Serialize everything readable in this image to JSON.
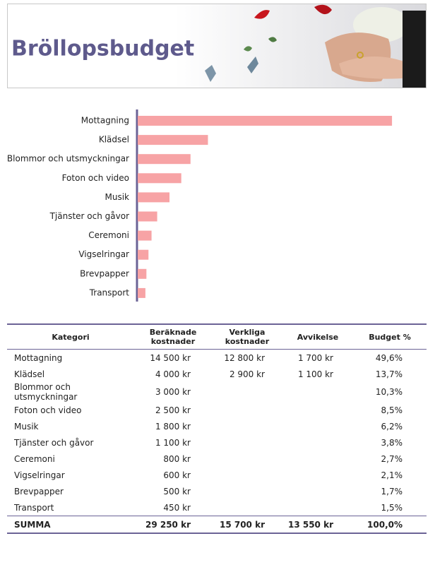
{
  "header": {
    "title": "Bröllopsbudget"
  },
  "chart_data": {
    "type": "bar",
    "orientation": "horizontal",
    "categories": [
      "Mottagning",
      "Klädsel",
      "Blommor och utsmyckningar",
      "Foton och video",
      "Musik",
      "Tjänster och gåvor",
      "Ceremoni",
      "Vigselringar",
      "Brevpapper",
      "Transport"
    ],
    "values": [
      49.6,
      13.7,
      10.3,
      8.5,
      6.2,
      3.8,
      2.7,
      2.1,
      1.7,
      1.5
    ],
    "color": "#f7a3a5",
    "xlim": [
      0,
      50
    ]
  },
  "table": {
    "columns": [
      "Kategori",
      "Beräknade kostnader",
      "Verkliga kostnader",
      "Avvikelse",
      "Budget %"
    ],
    "rows": [
      [
        "Mottagning",
        "14 500 kr",
        "12 800 kr",
        "1 700 kr",
        "49,6%"
      ],
      [
        "Klädsel",
        "4 000 kr",
        "2 900 kr",
        "1 100 kr",
        "13,7%"
      ],
      [
        "Blommor och utsmyckningar",
        "3 000 kr",
        null,
        null,
        "10,3%"
      ],
      [
        "Foton och video",
        "2 500 kr",
        null,
        null,
        "8,5%"
      ],
      [
        "Musik",
        "1 800 kr",
        null,
        null,
        "6,2%"
      ],
      [
        "Tjänster och gåvor",
        "1 100 kr",
        null,
        null,
        "3,8%"
      ],
      [
        "Ceremoni",
        "800 kr",
        null,
        null,
        "2,7%"
      ],
      [
        "Vigselringar",
        "600 kr",
        null,
        null,
        "2,1%"
      ],
      [
        "Brevpapper",
        "500 kr",
        null,
        null,
        "1,7%"
      ],
      [
        "Transport",
        "450 kr",
        null,
        null,
        "1,5%"
      ]
    ],
    "total": [
      "SUMMA",
      "29 250 kr",
      "15 700 kr",
      "13 550 kr",
      "100,0%"
    ]
  }
}
